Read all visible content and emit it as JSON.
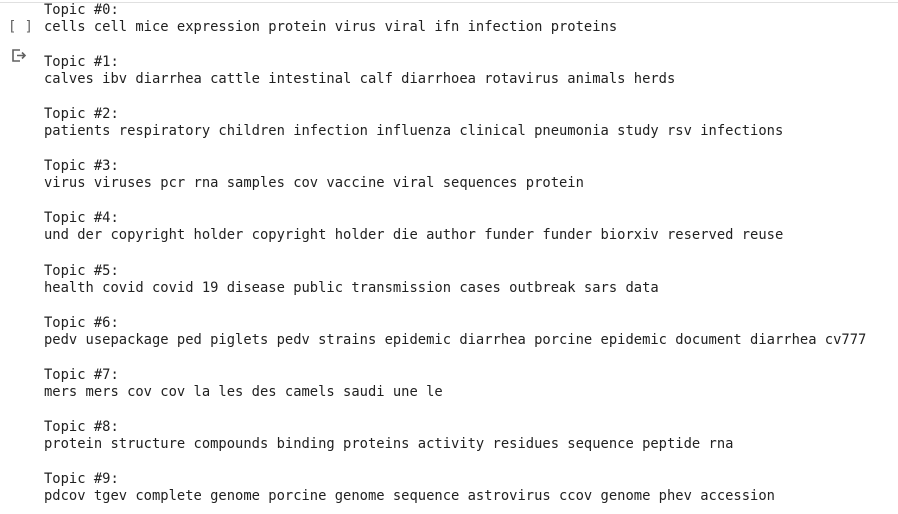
{
  "cell": {
    "bracket": "[ ]"
  },
  "topics": [
    {
      "label": "Topic #0:",
      "words": "cells cell mice expression protein virus viral ifn infection proteins"
    },
    {
      "label": "Topic #1:",
      "words": "calves ibv diarrhea cattle intestinal calf diarrhoea rotavirus animals herds"
    },
    {
      "label": "Topic #2:",
      "words": "patients respiratory children infection influenza clinical pneumonia study rsv infections"
    },
    {
      "label": "Topic #3:",
      "words": "virus viruses pcr rna samples cov vaccine viral sequences protein"
    },
    {
      "label": "Topic #4:",
      "words": "und der copyright holder copyright holder die author funder funder biorxiv reserved reuse"
    },
    {
      "label": "Topic #5:",
      "words": "health covid covid 19 disease public transmission cases outbreak sars data"
    },
    {
      "label": "Topic #6:",
      "words": "pedv usepackage ped piglets pedv strains epidemic diarrhea porcine epidemic document diarrhea cv777"
    },
    {
      "label": "Topic #7:",
      "words": "mers mers cov cov la les des camels saudi une le"
    },
    {
      "label": "Topic #8:",
      "words": "protein structure compounds binding proteins activity residues sequence peptide rna"
    },
    {
      "label": "Topic #9:",
      "words": "pdcov tgev complete genome porcine genome sequence astrovirus ccov genome phev accession"
    }
  ]
}
